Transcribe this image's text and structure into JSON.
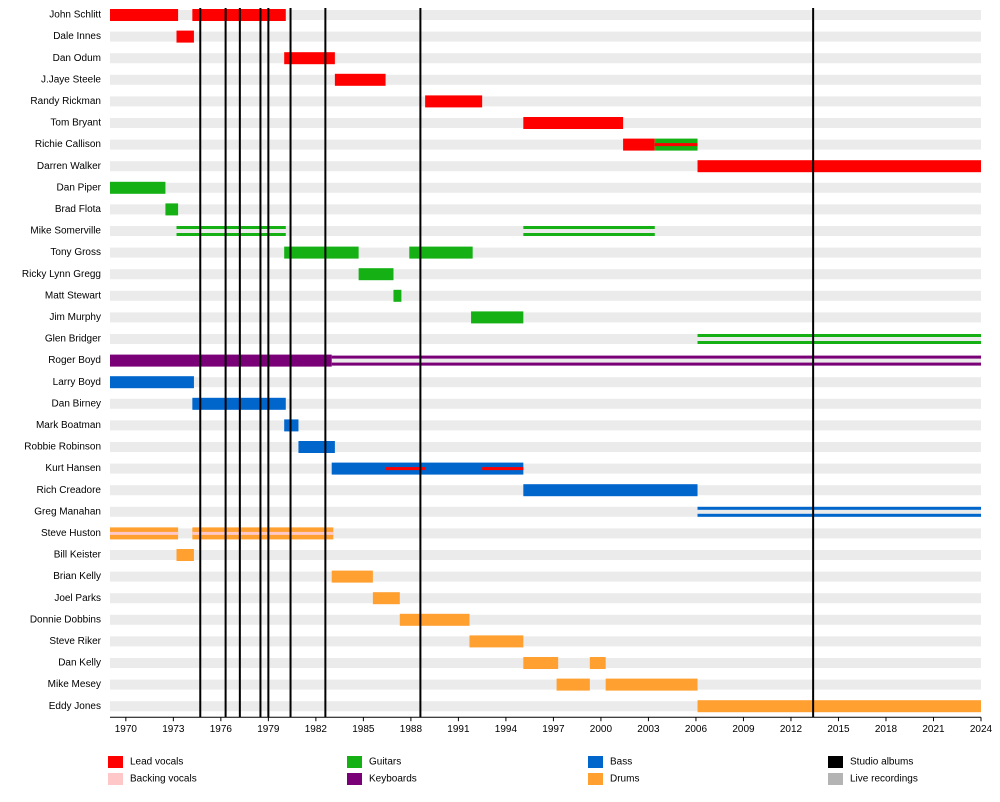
{
  "chart_data": {
    "type": "timeline",
    "xlim": [
      1969,
      2024
    ],
    "xticks": [
      1970,
      1973,
      1976,
      1979,
      1982,
      1985,
      1988,
      1991,
      1994,
      1997,
      2000,
      2003,
      2006,
      2009,
      2012,
      2015,
      2018,
      2021,
      2024
    ],
    "roles": [
      {
        "name": "Lead vocals",
        "color": "#ff0000"
      },
      {
        "name": "Backing vocals",
        "color": "#ffc8c8"
      },
      {
        "name": "Guitars",
        "color": "#14b014"
      },
      {
        "name": "Keyboards",
        "color": "#7a0078"
      },
      {
        "name": "Bass",
        "color": "#0066cc"
      },
      {
        "name": "Drums",
        "color": "#ffa030"
      },
      {
        "name": "Studio albums",
        "color": "#000000"
      },
      {
        "name": "Live recordings",
        "color": "#b4b4b4"
      }
    ],
    "studio_albums": [
      1974.7,
      1976.3,
      1977.2,
      1978.5,
      1979.0,
      1980.4,
      1982.6,
      1988.6,
      2013.4
    ],
    "members": [
      {
        "name": "John Schlitt",
        "spans": [
          {
            "role": "Lead vocals",
            "start": 1969,
            "end": 1973.3,
            "style": "solid"
          },
          {
            "role": "Lead vocals",
            "start": 1974.2,
            "end": 1980.1,
            "style": "solid"
          }
        ]
      },
      {
        "name": "Dale Innes",
        "spans": [
          {
            "role": "Lead vocals",
            "start": 1973.2,
            "end": 1974.3,
            "style": "solid"
          }
        ]
      },
      {
        "name": "Dan Odum",
        "spans": [
          {
            "role": "Lead vocals",
            "start": 1980.0,
            "end": 1983.2,
            "style": "solid"
          }
        ]
      },
      {
        "name": "J.Jaye Steele",
        "spans": [
          {
            "role": "Lead vocals",
            "start": 1983.2,
            "end": 1986.4,
            "style": "solid"
          }
        ]
      },
      {
        "name": "Randy Rickman",
        "spans": [
          {
            "role": "Lead vocals",
            "start": 1988.9,
            "end": 1992.5,
            "style": "solid"
          }
        ]
      },
      {
        "name": "Tom Bryant",
        "spans": [
          {
            "role": "Lead vocals",
            "start": 1995.1,
            "end": 2001.4,
            "style": "solid"
          }
        ]
      },
      {
        "name": "Richie Callison",
        "spans": [
          {
            "role": "Lead vocals",
            "start": 2001.4,
            "end": 2003.4,
            "style": "solid"
          },
          {
            "role": "Guitars",
            "start": 2003.4,
            "end": 2006.1,
            "style": "solid"
          },
          {
            "role": "Lead vocals",
            "start": 2003.4,
            "end": 2006.1,
            "style": "stripe"
          }
        ]
      },
      {
        "name": "Darren Walker",
        "spans": [
          {
            "role": "Lead vocals",
            "start": 2006.1,
            "end": 2024,
            "style": "solid"
          }
        ]
      },
      {
        "name": "Dan Piper",
        "spans": [
          {
            "role": "Guitars",
            "start": 1969,
            "end": 1972.5,
            "style": "solid"
          }
        ]
      },
      {
        "name": "Brad Flota",
        "spans": [
          {
            "role": "Guitars",
            "start": 1972.5,
            "end": 1973.3,
            "style": "solid"
          }
        ]
      },
      {
        "name": "Mike Somerville",
        "spans": [
          {
            "role": "Guitars",
            "start": 1973.2,
            "end": 1980.1,
            "style": "double"
          },
          {
            "role": "Guitars",
            "start": 1995.1,
            "end": 2003.4,
            "style": "double"
          }
        ]
      },
      {
        "name": "Tony Gross",
        "spans": [
          {
            "role": "Guitars",
            "start": 1980.0,
            "end": 1984.7,
            "style": "solid"
          },
          {
            "role": "Guitars",
            "start": 1987.9,
            "end": 1991.9,
            "style": "solid"
          }
        ]
      },
      {
        "name": "Ricky Lynn Gregg",
        "spans": [
          {
            "role": "Guitars",
            "start": 1984.7,
            "end": 1986.9,
            "style": "solid"
          }
        ]
      },
      {
        "name": "Matt Stewart",
        "spans": [
          {
            "role": "Guitars",
            "start": 1986.9,
            "end": 1987.4,
            "style": "solid"
          }
        ]
      },
      {
        "name": "Jim Murphy",
        "spans": [
          {
            "role": "Guitars",
            "start": 1991.8,
            "end": 1995.1,
            "style": "solid"
          }
        ]
      },
      {
        "name": "Glen Bridger",
        "spans": [
          {
            "role": "Guitars",
            "start": 2006.1,
            "end": 2024,
            "style": "double"
          }
        ]
      },
      {
        "name": "Roger Boyd",
        "spans": [
          {
            "role": "Keyboards",
            "start": 1969,
            "end": 1983.0,
            "style": "solid"
          },
          {
            "role": "Keyboards",
            "start": 1983.0,
            "end": 2024,
            "style": "double"
          }
        ]
      },
      {
        "name": "Larry Boyd",
        "spans": [
          {
            "role": "Bass",
            "start": 1969,
            "end": 1974.3,
            "style": "solid"
          }
        ]
      },
      {
        "name": "Dan Birney",
        "spans": [
          {
            "role": "Bass",
            "start": 1974.2,
            "end": 1980.1,
            "style": "solid"
          }
        ]
      },
      {
        "name": "Mark Boatman",
        "spans": [
          {
            "role": "Bass",
            "start": 1980.0,
            "end": 1980.9,
            "style": "solid"
          }
        ]
      },
      {
        "name": "Robbie Robinson",
        "spans": [
          {
            "role": "Bass",
            "start": 1980.9,
            "end": 1983.2,
            "style": "solid"
          }
        ]
      },
      {
        "name": "Kurt Hansen",
        "spans": [
          {
            "role": "Bass",
            "start": 1983.0,
            "end": 1995.1,
            "style": "solid"
          },
          {
            "role": "Lead vocals",
            "start": 1986.4,
            "end": 1988.9,
            "style": "stripe"
          },
          {
            "role": "Lead vocals",
            "start": 1992.5,
            "end": 1995.1,
            "style": "stripe"
          }
        ]
      },
      {
        "name": "Rich Creadore",
        "spans": [
          {
            "role": "Bass",
            "start": 1995.1,
            "end": 2006.1,
            "style": "solid"
          }
        ]
      },
      {
        "name": "Greg Manahan",
        "spans": [
          {
            "role": "Bass",
            "start": 2006.1,
            "end": 2024,
            "style": "double"
          }
        ]
      },
      {
        "name": "Steve Huston",
        "spans": [
          {
            "role": "Drums",
            "start": 1969,
            "end": 1973.3,
            "style": "solid"
          },
          {
            "role": "Drums",
            "start": 1974.2,
            "end": 1983.1,
            "style": "solid"
          },
          {
            "role": "Backing vocals",
            "start": 1969,
            "end": 1973.3,
            "style": "stripe"
          },
          {
            "role": "Backing vocals",
            "start": 1974.2,
            "end": 1983.1,
            "style": "stripe"
          }
        ]
      },
      {
        "name": "Bill Keister",
        "spans": [
          {
            "role": "Drums",
            "start": 1973.2,
            "end": 1974.3,
            "style": "solid"
          }
        ]
      },
      {
        "name": "Brian Kelly",
        "spans": [
          {
            "role": "Drums",
            "start": 1983.0,
            "end": 1985.6,
            "style": "solid"
          }
        ]
      },
      {
        "name": "Joel Parks",
        "spans": [
          {
            "role": "Drums",
            "start": 1985.6,
            "end": 1987.3,
            "style": "solid"
          }
        ]
      },
      {
        "name": "Donnie Dobbins",
        "spans": [
          {
            "role": "Drums",
            "start": 1987.3,
            "end": 1991.7,
            "style": "solid"
          }
        ]
      },
      {
        "name": "Steve Riker",
        "spans": [
          {
            "role": "Drums",
            "start": 1991.7,
            "end": 1995.1,
            "style": "solid"
          }
        ]
      },
      {
        "name": "Dan Kelly",
        "spans": [
          {
            "role": "Drums",
            "start": 1995.1,
            "end": 1997.3,
            "style": "solid"
          },
          {
            "role": "Drums",
            "start": 1999.3,
            "end": 2000.3,
            "style": "solid"
          }
        ]
      },
      {
        "name": "Mike Mesey",
        "spans": [
          {
            "role": "Drums",
            "start": 1997.2,
            "end": 1999.3,
            "style": "solid"
          },
          {
            "role": "Drums",
            "start": 2000.3,
            "end": 2006.1,
            "style": "solid"
          }
        ]
      },
      {
        "name": "Eddy Jones",
        "spans": [
          {
            "role": "Drums",
            "start": 2006.1,
            "end": 2024,
            "style": "solid"
          }
        ]
      }
    ]
  }
}
